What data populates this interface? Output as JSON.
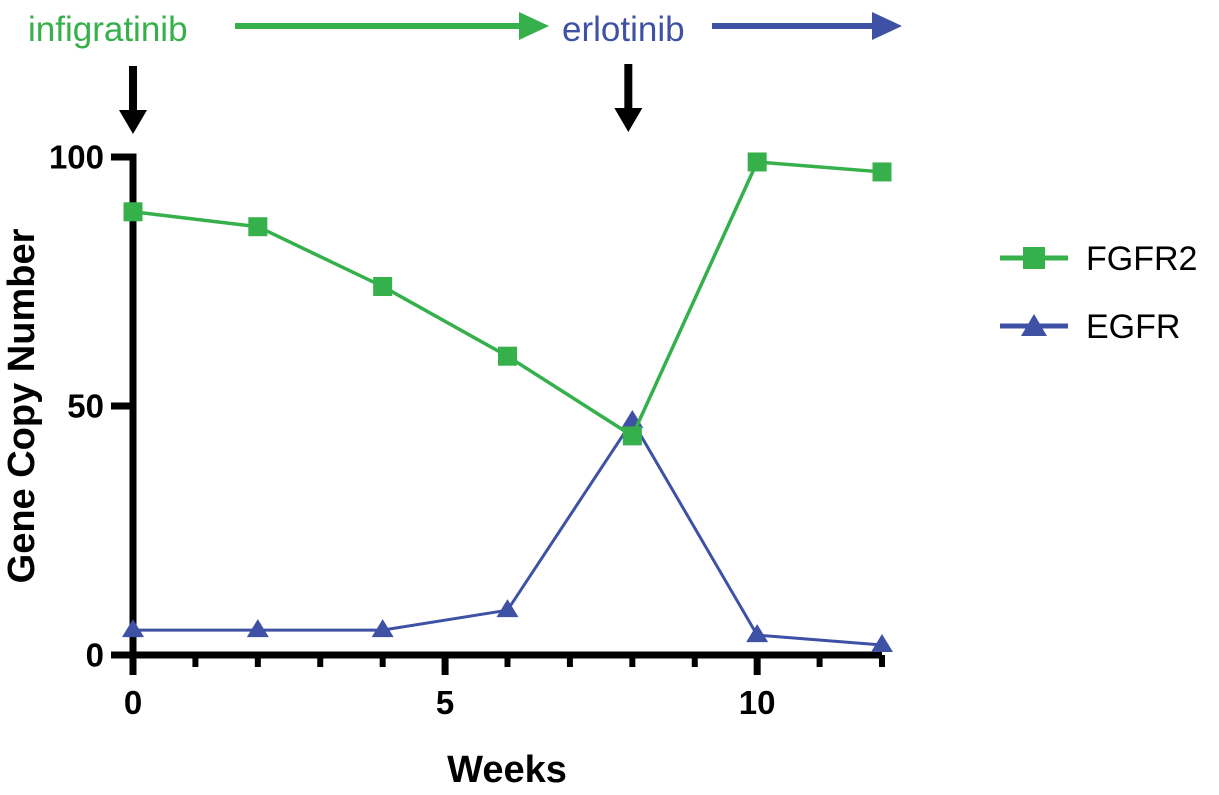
{
  "colors": {
    "fgfr2_green": "#35b04a",
    "egfr_blue": "#3e51a5",
    "axis_black": "#000000"
  },
  "annotations": {
    "infigratinib_label": "infigratinib",
    "erlotinib_label": "erlotinib",
    "treatment_start_week": 0,
    "treatment_switch_week": 8
  },
  "chart_data": {
    "type": "line",
    "title": "",
    "xlabel": "Weeks",
    "ylabel": "Gene Copy Number",
    "x": [
      0,
      2,
      4,
      6,
      8,
      10,
      12
    ],
    "series": [
      {
        "name": "FGFR2",
        "color": "#35b04a",
        "marker": "square",
        "values": [
          89,
          86,
          74,
          60,
          44,
          99,
          97
        ]
      },
      {
        "name": "EGFR",
        "color": "#3e51a5",
        "marker": "triangle",
        "values": [
          5,
          5,
          5,
          9,
          47,
          4,
          2
        ]
      }
    ],
    "xlim": [
      0,
      12
    ],
    "ylim": [
      0,
      100
    ],
    "x_major_ticks": [
      0,
      5,
      10
    ],
    "x_minor_ticks": [
      1,
      2,
      3,
      4,
      6,
      7,
      8,
      9,
      11,
      12
    ],
    "y_ticks": [
      0,
      50,
      100
    ],
    "grid": false,
    "legend_position": "right"
  }
}
